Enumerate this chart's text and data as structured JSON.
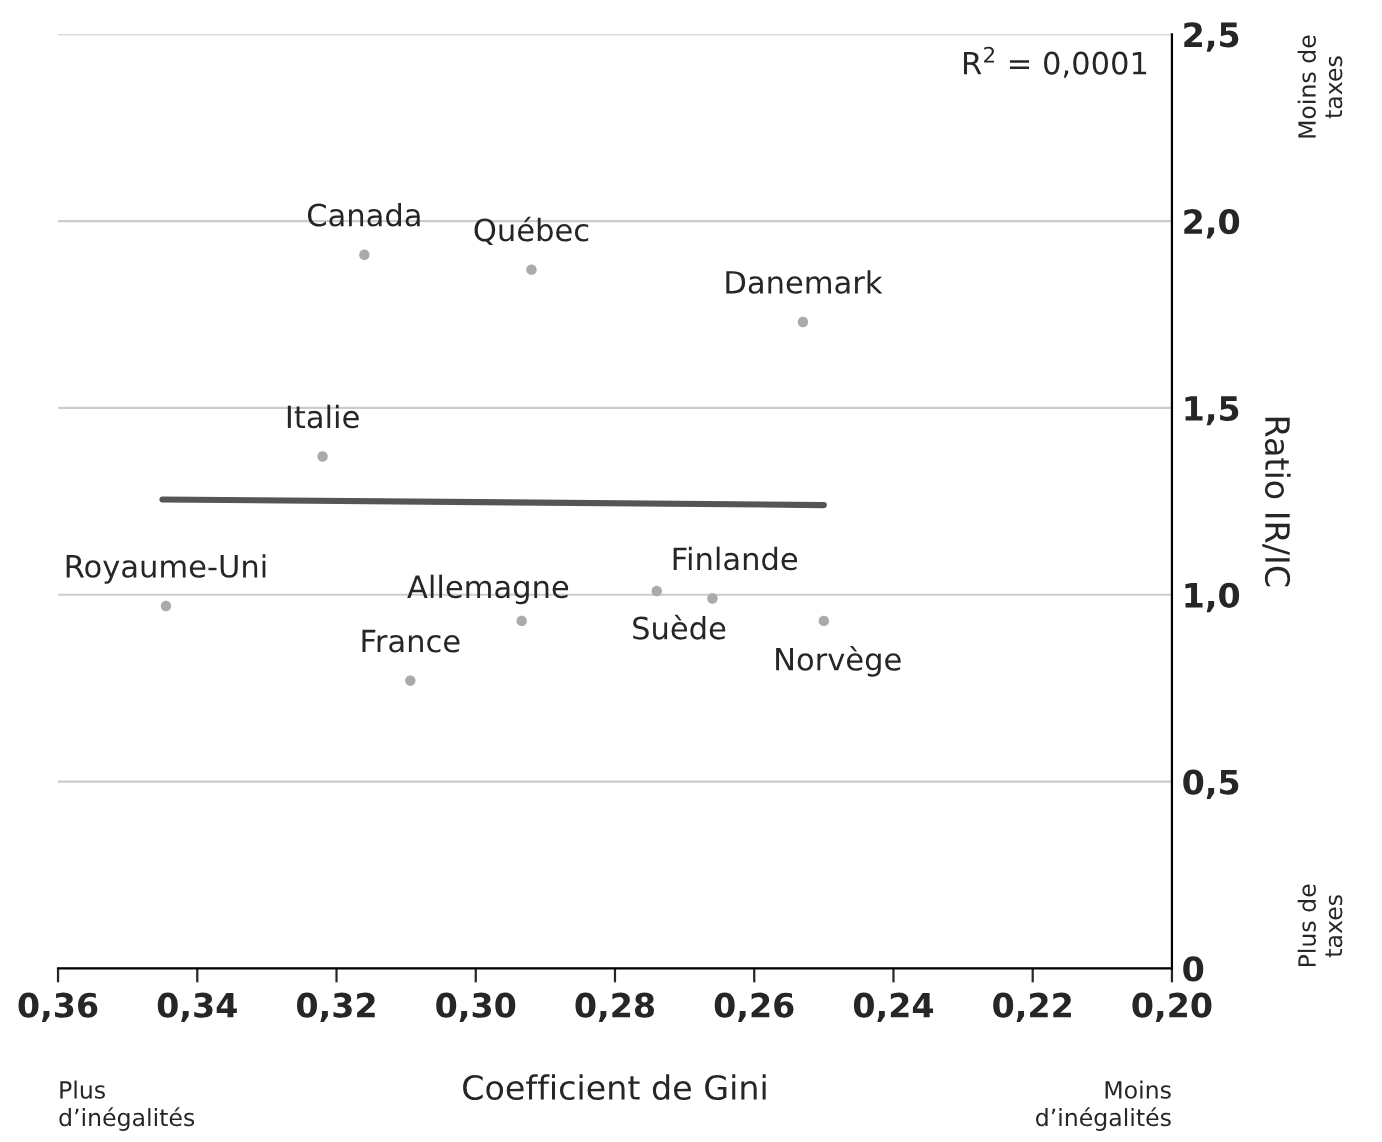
{
  "chart_data": {
    "type": "scatter",
    "xlabel": "Coefficient de Gini",
    "ylabel": "Ratio IR/IC",
    "xlim": [
      0.36,
      0.2
    ],
    "ylim": [
      0,
      2.5
    ],
    "xticks": [
      {
        "value": 0.36,
        "label": "0,36"
      },
      {
        "value": 0.34,
        "label": "0,34"
      },
      {
        "value": 0.32,
        "label": "0,32"
      },
      {
        "value": 0.3,
        "label": "0,30"
      },
      {
        "value": 0.28,
        "label": "0,28"
      },
      {
        "value": 0.26,
        "label": "0,26"
      },
      {
        "value": 0.24,
        "label": "0,24"
      },
      {
        "value": 0.22,
        "label": "0,22"
      },
      {
        "value": 0.2,
        "label": "0,20"
      }
    ],
    "yticks": [
      0,
      {
        "value": 0.5,
        "label": "0,5"
      },
      {
        "value": 1.0,
        "label": "1,0"
      },
      {
        "value": 1.5,
        "label": "1,5"
      },
      {
        "value": 2.0,
        "label": "2,0"
      },
      {
        "value": 2.5,
        "label": "2,5"
      }
    ],
    "grid": "y",
    "legend": false,
    "series": [
      {
        "type": "scatter",
        "color": "#aaaaaa",
        "x": [
          0.316,
          0.292,
          0.253,
          0.322,
          0.3445,
          0.2934,
          0.3094,
          0.274,
          0.266,
          0.25
        ],
        "values": [
          1.91,
          1.87,
          1.73,
          1.37,
          0.97,
          0.93,
          0.77,
          1.01,
          0.99,
          0.93
        ]
      },
      {
        "type": "line",
        "color": "#555555",
        "x": [
          0.345,
          0.25
        ],
        "values": [
          1.255,
          1.24
        ]
      }
    ],
    "annotations": [
      {
        "text": "Canada",
        "x": 0.316,
        "y": 1.91
      },
      {
        "text": "Québec",
        "x": 0.292,
        "y": 1.87
      },
      {
        "text": "Danemark",
        "x": 0.253,
        "y": 1.73
      },
      {
        "text": "Italie",
        "x": 0.322,
        "y": 1.37
      },
      {
        "text": "Royaume-Uni",
        "x": 0.3445,
        "y": 0.97
      },
      {
        "text": "Allemagne",
        "x": 0.2934,
        "y": 0.93
      },
      {
        "text": "France",
        "x": 0.3094,
        "y": 0.77
      },
      {
        "text": "Suède",
        "x": 0.274,
        "y": 1.01
      },
      {
        "text": "Finlande",
        "x": 0.266,
        "y": 0.99
      },
      {
        "text": "Norvège",
        "x": 0.25,
        "y": 0.93
      },
      "R$^{2}$ = 0,0001",
      "Moins de\ntaxes",
      "Plus de\ntaxes",
      "Plus\nd’inégalités",
      "Moins\nd’inégalités"
    ]
  }
}
